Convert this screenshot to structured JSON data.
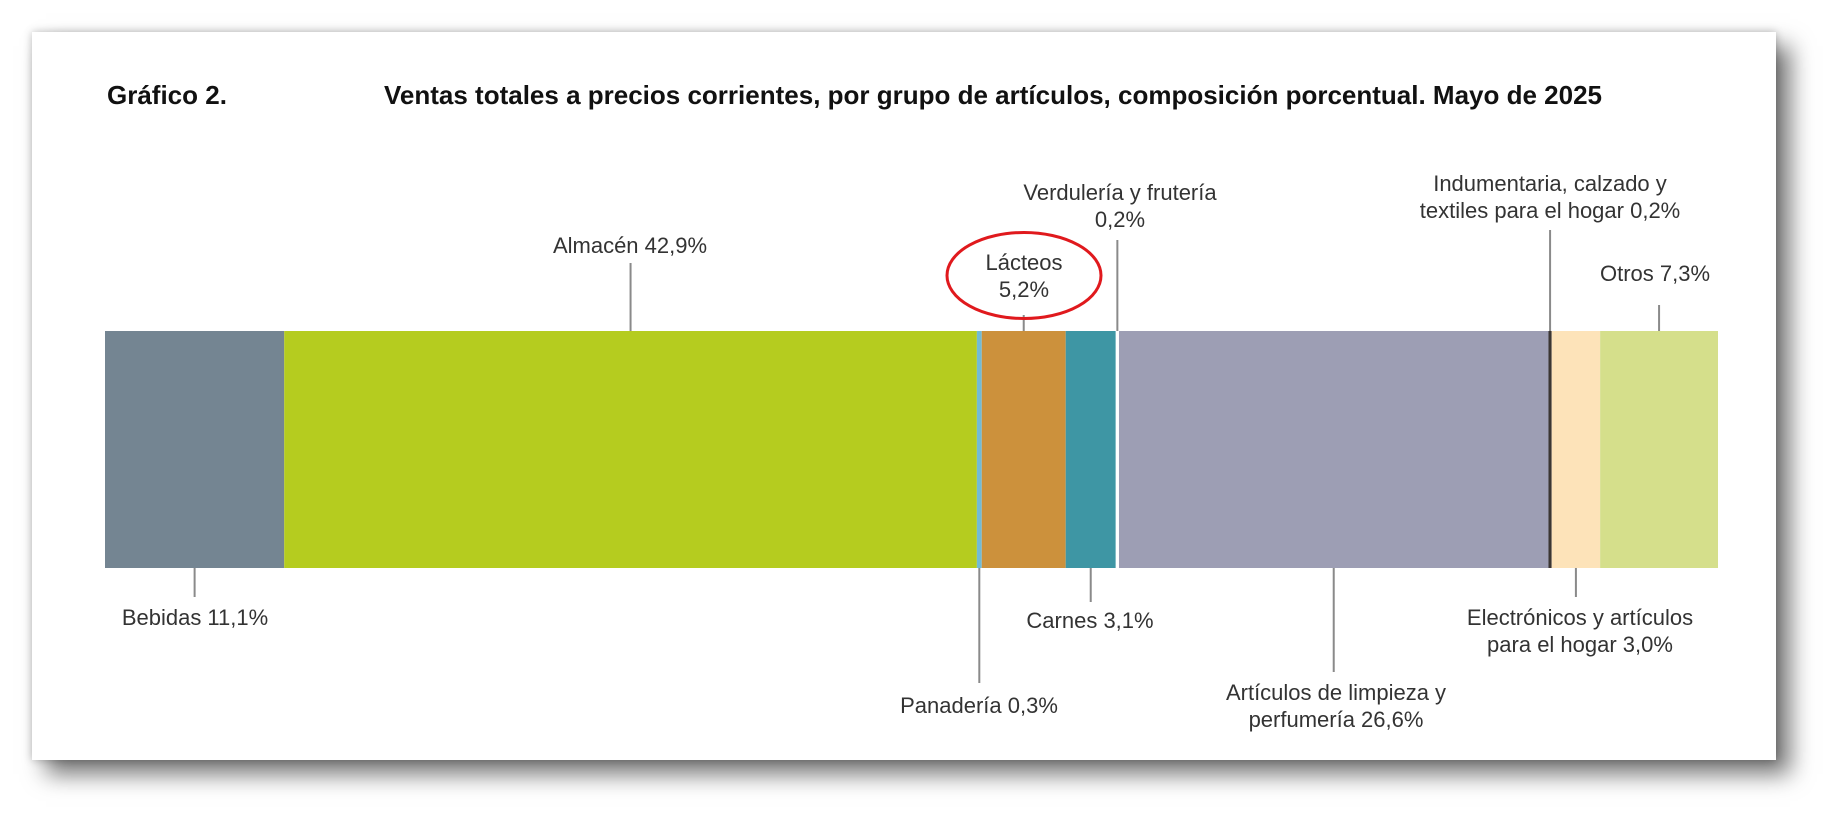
{
  "figure_label": "Gráfico 2.",
  "title": "Ventas totales a precios corrientes, por grupo de artículos, composición porcentual. Mayo de 2025",
  "chart_data": {
    "type": "bar",
    "orientation": "horizontal-stacked",
    "unit": "%",
    "segments": [
      {
        "key": "bebidas",
        "value": 11.1,
        "color": "#748592",
        "label_lines": [
          "Bebidas 11,1%"
        ],
        "label_side": "bottom"
      },
      {
        "key": "almacen",
        "value": 42.9,
        "color": "#b5cc1f",
        "label_lines": [
          "Almacén 42,9%"
        ],
        "label_side": "top"
      },
      {
        "key": "panaderia",
        "value": 0.3,
        "color": "#72bbd5",
        "label_lines": [
          "Panadería 0,3%"
        ],
        "label_side": "bottom"
      },
      {
        "key": "lacteos",
        "value": 5.2,
        "color": "#cc913c",
        "label_lines": [
          "Lácteos",
          "5,2%"
        ],
        "label_side": "top",
        "highlighted": true
      },
      {
        "key": "carnes",
        "value": 3.1,
        "color": "#3e96a4",
        "label_lines": [
          "Carnes 3,1%"
        ],
        "label_side": "bottom"
      },
      {
        "key": "verduleria",
        "value": 0.2,
        "color": "#ffffff",
        "label_lines": [
          "Verdulería y frutería",
          "0,2%"
        ],
        "label_side": "top"
      },
      {
        "key": "limpieza",
        "value": 26.6,
        "color": "#9d9eb4",
        "label_lines": [
          "Artículos de limpieza y",
          "perfumería 26,6%"
        ],
        "label_side": "bottom"
      },
      {
        "key": "indumentaria",
        "value": 0.2,
        "color": "#3b3633",
        "label_lines": [
          "Indumentaria, calzado y",
          "textiles para el hogar 0,2%"
        ],
        "label_side": "top"
      },
      {
        "key": "electronicos",
        "value": 3.0,
        "color": "#fde3b9",
        "label_lines": [
          "Electrónicos y artículos",
          "para el hogar 3,0%"
        ],
        "label_side": "bottom"
      },
      {
        "key": "otros",
        "value": 7.3,
        "color": "#d5df8b",
        "label_lines": [
          "Otros 7,3%"
        ],
        "label_side": "top"
      }
    ],
    "xlim": [
      0,
      100
    ],
    "annotation": {
      "type": "circle",
      "target": "lacteos",
      "color": "#e0191d"
    }
  }
}
